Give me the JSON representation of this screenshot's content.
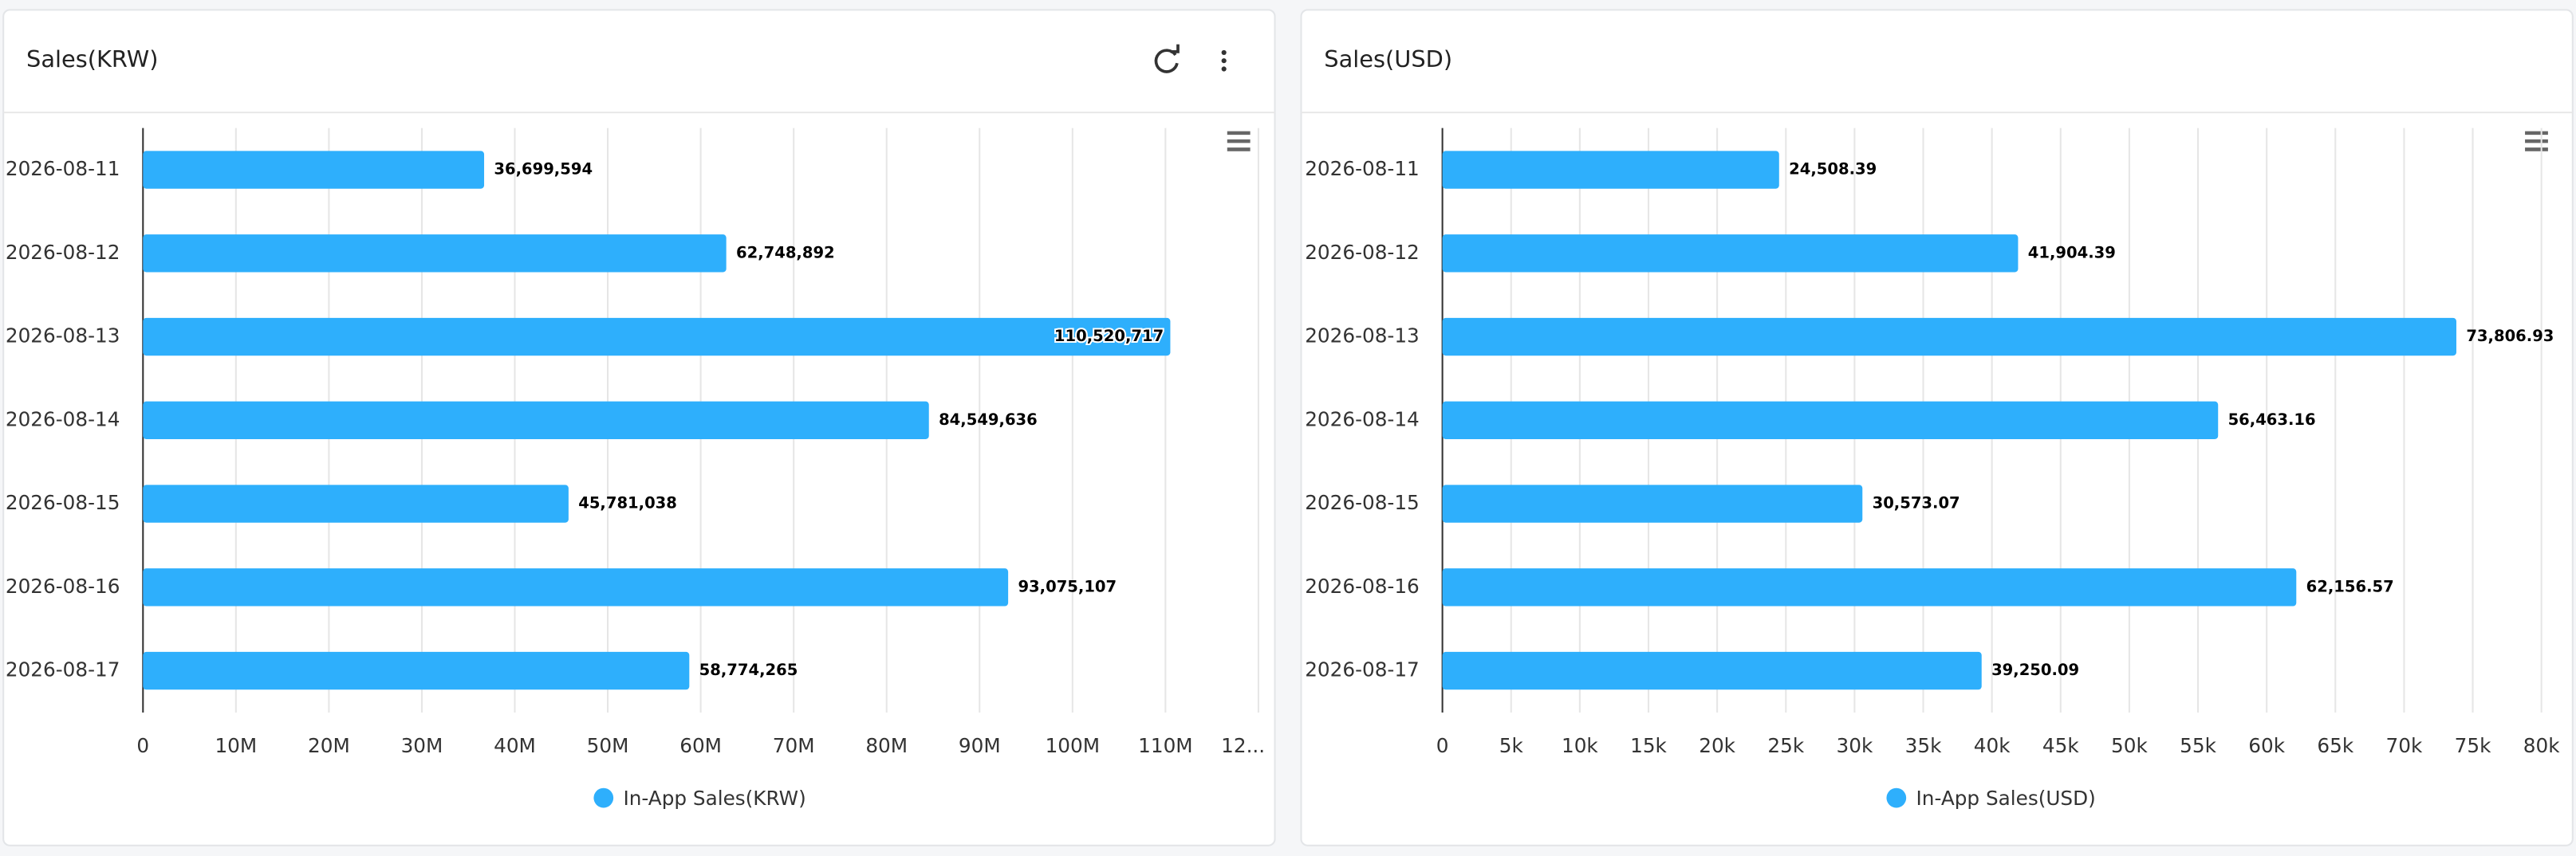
{
  "chart_data": [
    {
      "type": "bar",
      "orientation": "horizontal",
      "title": "Sales(KRW)",
      "categories": [
        "2026-08-11",
        "2026-08-12",
        "2026-08-13",
        "2026-08-14",
        "2026-08-15",
        "2026-08-16",
        "2026-08-17"
      ],
      "series": [
        {
          "name": "In-App Sales(KRW)",
          "color": "#2eaffc",
          "values": [
            36699594,
            62748892,
            110520717,
            84549636,
            45781038,
            93075107,
            58774265
          ],
          "value_labels": [
            "36,699,594",
            "62,748,892",
            "110,520,717",
            "84,549,636",
            "45,781,038",
            "93,075,107",
            "58,774,265"
          ]
        }
      ],
      "xlim": [
        0,
        120000000
      ],
      "xticks": [
        0,
        {
          "value": 10000000,
          "label": "10M"
        },
        {
          "value": 20000000,
          "label": "20M"
        },
        {
          "value": 30000000,
          "label": "30M"
        },
        {
          "value": 40000000,
          "label": "40M"
        },
        {
          "value": 50000000,
          "label": "50M"
        },
        {
          "value": 60000000,
          "label": "60M"
        },
        {
          "value": 70000000,
          "label": "70M"
        },
        {
          "value": 80000000,
          "label": "80M"
        },
        {
          "value": 90000000,
          "label": "90M"
        },
        {
          "value": 100000000,
          "label": "100M"
        },
        {
          "value": 110000000,
          "label": "110M"
        },
        {
          "value": 120000000,
          "label": "12..."
        }
      ],
      "grid": true,
      "legend": "bottom"
    },
    {
      "type": "bar",
      "orientation": "horizontal",
      "title": "Sales(USD)",
      "categories": [
        "2026-08-11",
        "2026-08-12",
        "2026-08-13",
        "2026-08-14",
        "2026-08-15",
        "2026-08-16",
        "2026-08-17"
      ],
      "series": [
        {
          "name": "In-App Sales(USD)",
          "color": "#2eaffc",
          "values": [
            24508.39,
            41904.39,
            73806.93,
            56463.16,
            30573.07,
            62156.57,
            39250.09
          ],
          "value_labels": [
            "24,508.39",
            "41,904.39",
            "73,806.93",
            "56,463.16",
            "30,573.07",
            "62,156.57",
            "39,250.09"
          ]
        }
      ],
      "xlim": [
        0,
        80000
      ],
      "xticks": [
        0,
        {
          "value": 5000,
          "label": "5k"
        },
        {
          "value": 10000,
          "label": "10k"
        },
        {
          "value": 15000,
          "label": "15k"
        },
        {
          "value": 20000,
          "label": "20k"
        },
        {
          "value": 25000,
          "label": "25k"
        },
        {
          "value": 30000,
          "label": "30k"
        },
        {
          "value": 35000,
          "label": "35k"
        },
        {
          "value": 40000,
          "label": "40k"
        },
        {
          "value": 45000,
          "label": "45k"
        },
        {
          "value": 50000,
          "label": "50k"
        },
        {
          "value": 55000,
          "label": "55k"
        },
        {
          "value": 60000,
          "label": "60k"
        },
        {
          "value": 65000,
          "label": "65k"
        },
        {
          "value": 70000,
          "label": "70k"
        },
        {
          "value": 75000,
          "label": "75k"
        },
        {
          "value": 80000,
          "label": "80k"
        }
      ],
      "grid": true,
      "legend": "bottom"
    }
  ]
}
